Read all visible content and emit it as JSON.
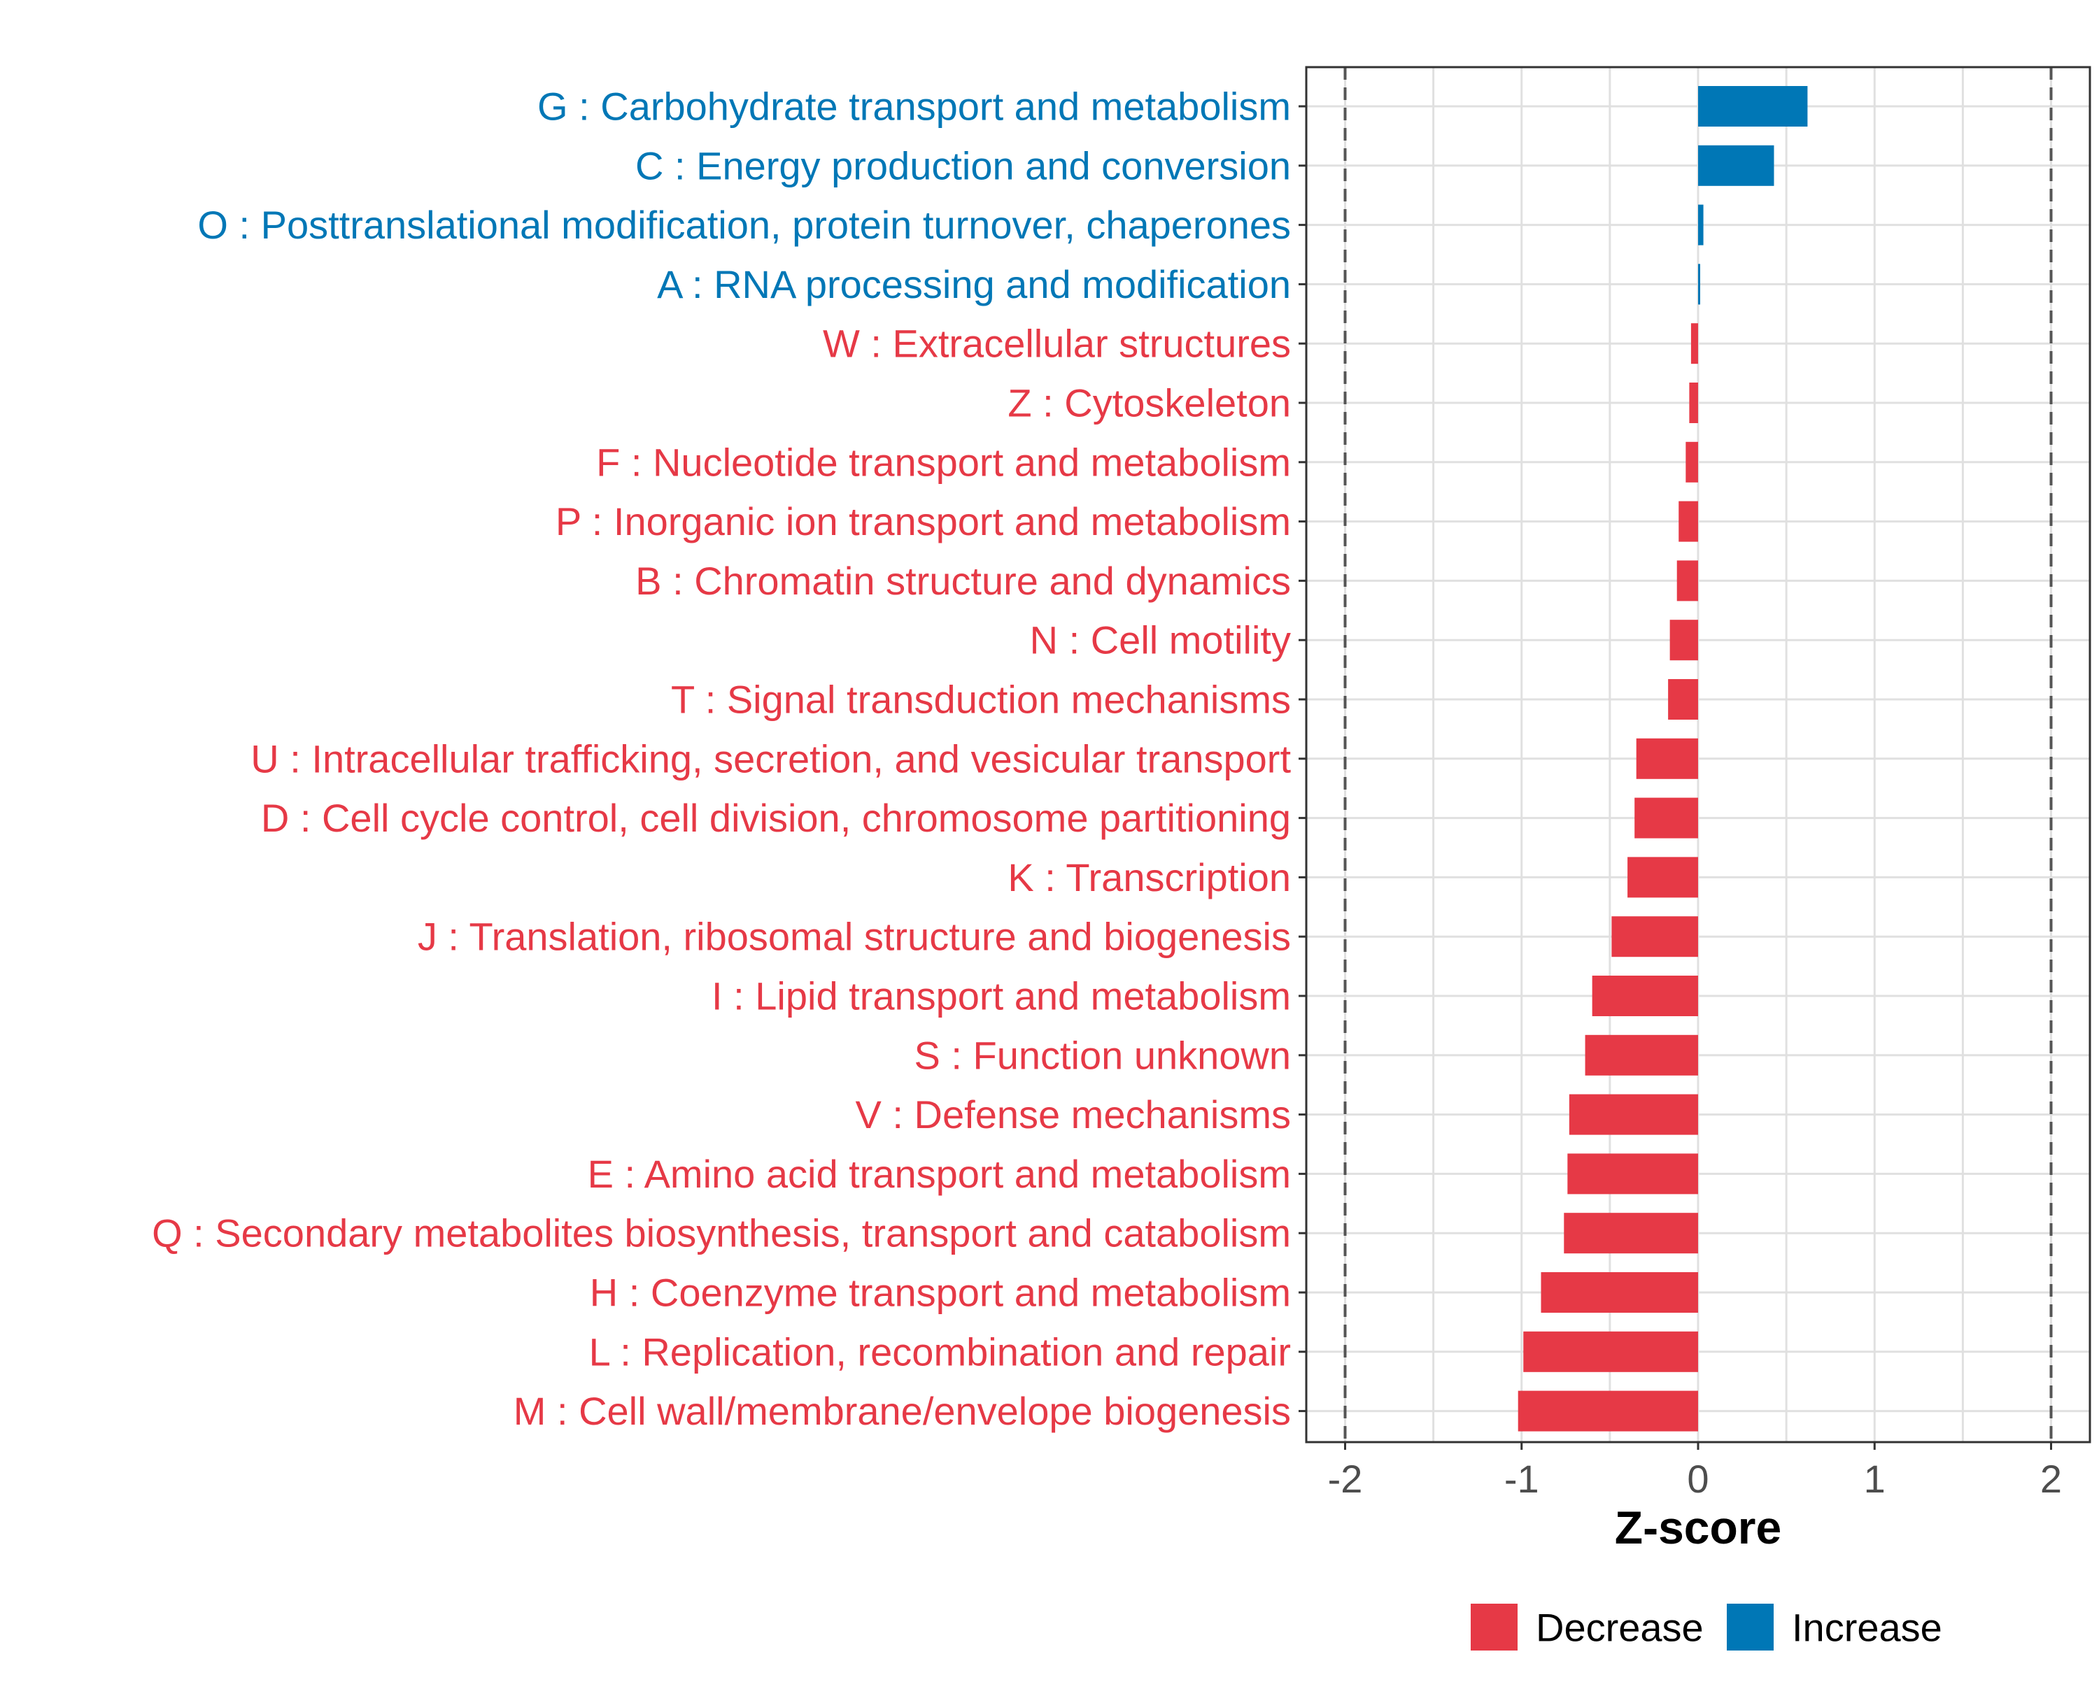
{
  "chart_data": {
    "type": "bar",
    "orientation": "horizontal",
    "title": "",
    "xlabel": "Z-score",
    "ylabel": "",
    "xlim": [
      -2.22,
      2.22
    ],
    "x_ticks": [
      {
        "value": -2,
        "label": "-2"
      },
      {
        "value": -1,
        "label": "-1"
      },
      {
        "value": 0,
        "label": "0"
      },
      {
        "value": 1,
        "label": "1"
      },
      {
        "value": 2,
        "label": "2"
      }
    ],
    "reference_lines": [
      -2,
      2
    ],
    "grid": true,
    "legend_position": "bottom",
    "legend": [
      {
        "label": "Decrease",
        "color": "#E63946"
      },
      {
        "label": "Increase",
        "color": "#0077B6"
      }
    ],
    "categories": [
      "G : Carbohydrate transport and metabolism",
      "C : Energy production and conversion",
      "O : Posttranslational modification, protein turnover, chaperones",
      "A : RNA processing and modification",
      "W : Extracellular structures",
      "Z : Cytoskeleton",
      "F : Nucleotide transport and metabolism",
      "P : Inorganic ion transport and metabolism",
      "B : Chromatin structure and dynamics",
      "N : Cell motility",
      "T : Signal transduction mechanisms",
      "U : Intracellular trafficking, secretion, and vesicular transport",
      "D : Cell cycle control, cell division, chromosome partitioning",
      "K : Transcription",
      "J : Translation, ribosomal structure and biogenesis",
      "I : Lipid transport and metabolism",
      "S : Function unknown",
      "V : Defense mechanisms",
      "E : Amino acid transport and metabolism",
      "Q : Secondary metabolites biosynthesis, transport and catabolism",
      "H : Coenzyme transport and metabolism",
      "L : Replication, recombination and repair",
      "M : Cell wall/membrane/envelope biogenesis"
    ],
    "values": [
      0.62,
      0.43,
      0.03,
      0.01,
      -0.04,
      -0.05,
      -0.07,
      -0.11,
      -0.12,
      -0.16,
      -0.17,
      -0.35,
      -0.36,
      -0.4,
      -0.49,
      -0.6,
      -0.64,
      -0.73,
      -0.74,
      -0.76,
      -0.89,
      -0.99,
      -1.02
    ],
    "groups": [
      "Increase",
      "Increase",
      "Increase",
      "Increase",
      "Decrease",
      "Decrease",
      "Decrease",
      "Decrease",
      "Decrease",
      "Decrease",
      "Decrease",
      "Decrease",
      "Decrease",
      "Decrease",
      "Decrease",
      "Decrease",
      "Decrease",
      "Decrease",
      "Decrease",
      "Decrease",
      "Decrease",
      "Decrease",
      "Decrease"
    ]
  }
}
